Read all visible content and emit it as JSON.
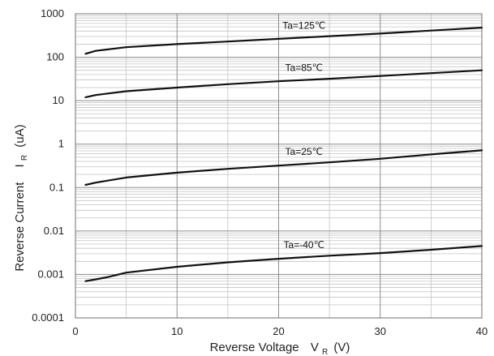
{
  "chart_data": {
    "type": "line",
    "title": "",
    "xlabel": {
      "main": "Reverse Voltage",
      "symbol": "V",
      "subscript": "R",
      "unit": "(V)"
    },
    "ylabel": {
      "main": "Reverse Current",
      "symbol": "I",
      "subscript": "R",
      "unit": "(uA)"
    },
    "xlim": [
      0,
      40
    ],
    "ylim": [
      0.0001,
      1000
    ],
    "yscale": "log",
    "grid": true,
    "x_ticks": [
      "0",
      "10",
      "20",
      "30",
      "40"
    ],
    "y_ticks": [
      "0.0001",
      "0.001",
      "0.01",
      "0.1",
      "1",
      "10",
      "100",
      "1000"
    ],
    "series": [
      {
        "name": "Ta=125℃",
        "x": [
          1,
          2,
          5,
          10,
          15,
          20,
          25,
          30,
          35,
          40
        ],
        "y": [
          120,
          140,
          170,
          200,
          230,
          265,
          305,
          350,
          410,
          480
        ]
      },
      {
        "name": "Ta=85℃",
        "x": [
          1,
          2,
          5,
          10,
          15,
          20,
          25,
          30,
          35,
          40
        ],
        "y": [
          12,
          13.5,
          16.5,
          20,
          24,
          28,
          32,
          37,
          43,
          50
        ]
      },
      {
        "name": "Ta=25℃",
        "x": [
          1,
          2,
          5,
          10,
          15,
          20,
          25,
          30,
          35,
          40
        ],
        "y": [
          0.115,
          0.13,
          0.17,
          0.22,
          0.27,
          0.32,
          0.38,
          0.46,
          0.58,
          0.72
        ]
      },
      {
        "name": "Ta=-40℃",
        "x": [
          1,
          2,
          3,
          5,
          10,
          15,
          20,
          25,
          30,
          35,
          40
        ],
        "y": [
          0.0007,
          0.00077,
          0.00085,
          0.0011,
          0.0015,
          0.0019,
          0.0023,
          0.0027,
          0.0031,
          0.0037,
          0.0045
        ]
      }
    ]
  }
}
